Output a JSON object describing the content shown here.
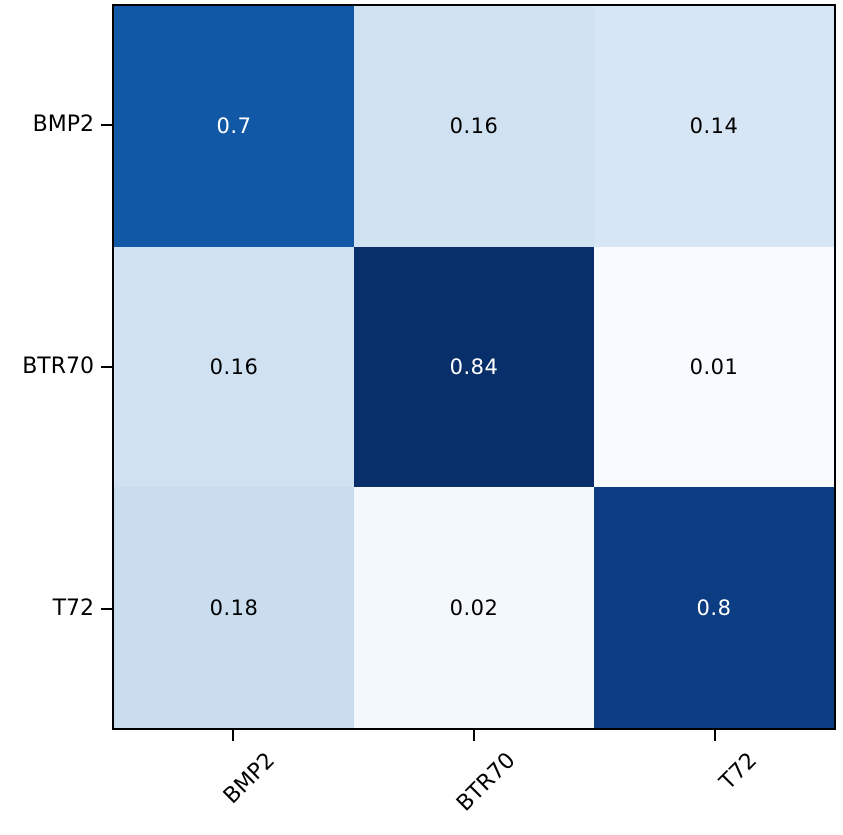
{
  "chart_data": {
    "type": "heatmap",
    "title": "",
    "xlabel": "",
    "ylabel": "",
    "x_categories": [
      "BMP2",
      "BTR70",
      "T72"
    ],
    "y_categories": [
      "BMP2",
      "BTR70",
      "T72"
    ],
    "matrix": [
      [
        0.7,
        0.16,
        0.14
      ],
      [
        0.16,
        0.84,
        0.01
      ],
      [
        0.18,
        0.02,
        0.8
      ]
    ],
    "cell_labels": [
      [
        "0.7",
        "0.16",
        "0.14"
      ],
      [
        "0.16",
        "0.84",
        "0.01"
      ],
      [
        "0.18",
        "0.02",
        "0.8"
      ]
    ],
    "cell_colors": [
      [
        "#1158a6",
        "#d0e1f2",
        "#d6e6f4"
      ],
      [
        "#d0e1f2",
        "#092f6b",
        "#f7faff"
      ],
      [
        "#c9ddef",
        "#f3f8fd",
        "#0c3d82"
      ]
    ],
    "cell_text_colors": [
      [
        "#ffffff",
        "#000000",
        "#000000"
      ],
      [
        "#000000",
        "#ffffff",
        "#000000"
      ],
      [
        "#000000",
        "#000000",
        "#ffffff"
      ]
    ],
    "colormap": "Blues",
    "value_range": [
      0.01,
      0.84
    ],
    "legend": "none",
    "grid": false,
    "spine_color": "#000000",
    "background_color": "#ffffff"
  }
}
